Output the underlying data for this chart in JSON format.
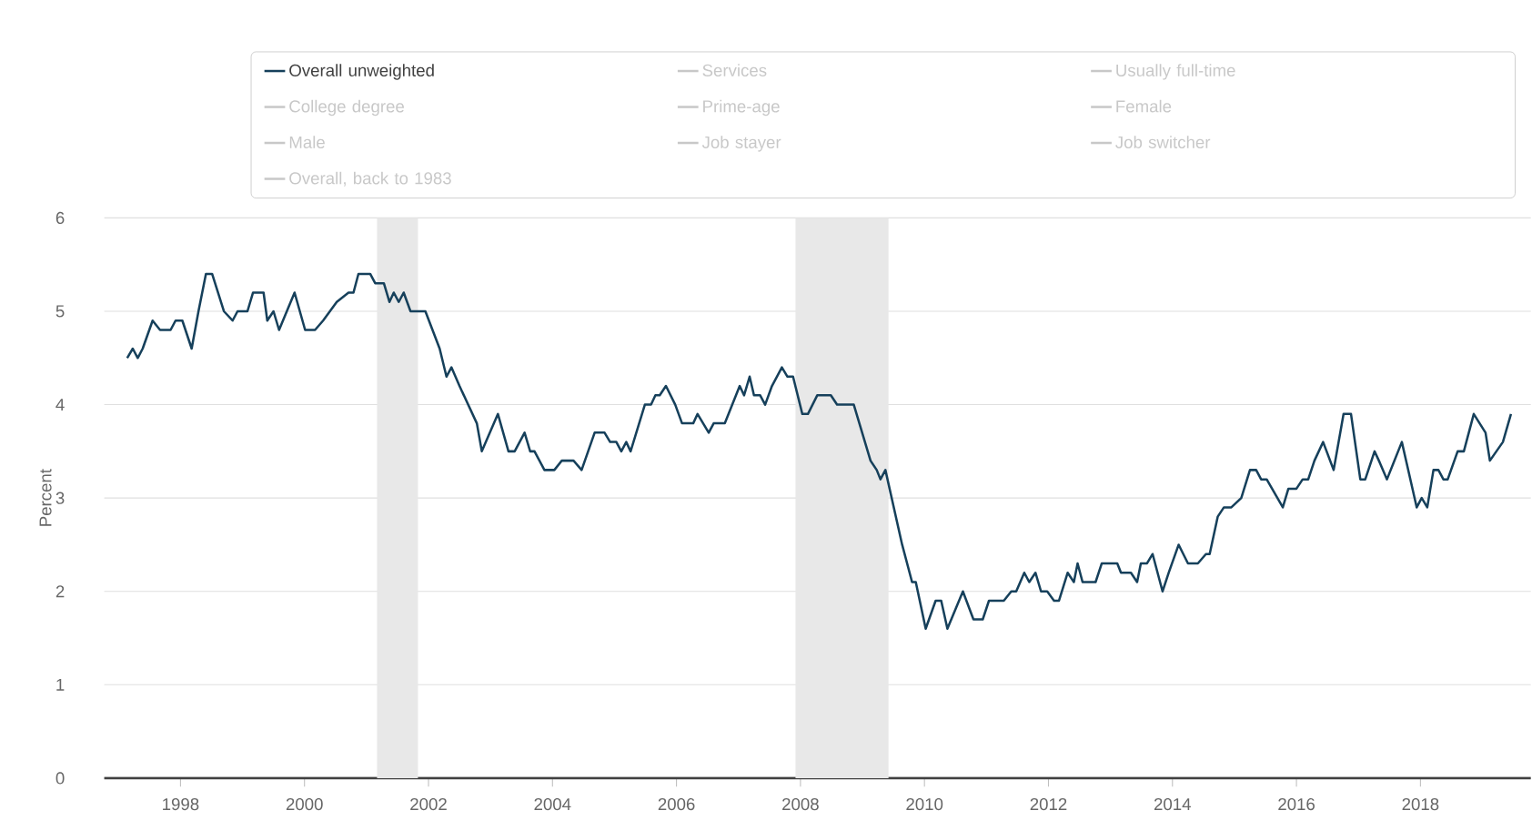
{
  "chart_data": {
    "type": "line",
    "ylabel": "Percent",
    "x": [
      1997.14,
      1997.23,
      1997.31,
      1997.39,
      1997.55,
      1997.67,
      1997.84,
      1997.92,
      1998.03,
      1998.18,
      1998.29,
      1998.41,
      1998.51,
      1998.7,
      1998.84,
      1998.92,
      1999.08,
      1999.17,
      1999.34,
      1999.4,
      1999.5,
      1999.59,
      1999.84,
      2000.01,
      2000.17,
      2000.3,
      2000.52,
      2000.71,
      2000.79,
      2000.87,
      2001.06,
      2001.14,
      2001.28,
      2001.37,
      2001.44,
      2001.52,
      2001.6,
      2001.71,
      2001.95,
      2002.18,
      2002.29,
      2002.37,
      2002.5,
      2002.78,
      2002.86,
      2003.12,
      2003.29,
      2003.39,
      2003.55,
      2003.64,
      2003.71,
      2003.87,
      2004.03,
      2004.15,
      2004.34,
      2004.47,
      2004.68,
      2004.84,
      2004.93,
      2005.03,
      2005.11,
      2005.19,
      2005.26,
      2005.49,
      2005.59,
      2005.66,
      2005.73,
      2005.83,
      2005.98,
      2006.09,
      2006.27,
      2006.34,
      2006.52,
      2006.6,
      2006.78,
      2006.9,
      2007.02,
      2007.09,
      2007.18,
      2007.25,
      2007.35,
      2007.43,
      2007.54,
      2007.7,
      2007.79,
      2007.88,
      2008.03,
      2008.12,
      2008.27,
      2008.49,
      2008.59,
      2008.86,
      2009.13,
      2009.23,
      2009.29,
      2009.37,
      2009.64,
      2009.8,
      2009.86,
      2010.02,
      2010.18,
      2010.27,
      2010.37,
      2010.62,
      2010.79,
      2010.94,
      2011.04,
      2011.28,
      2011.4,
      2011.48,
      2011.61,
      2011.69,
      2011.79,
      2011.88,
      2011.98,
      2012.09,
      2012.17,
      2012.31,
      2012.41,
      2012.47,
      2012.55,
      2012.76,
      2012.86,
      2013.11,
      2013.17,
      2013.33,
      2013.43,
      2013.49,
      2013.59,
      2013.68,
      2013.84,
      2013.94,
      2014.1,
      2014.25,
      2014.41,
      2014.54,
      2014.6,
      2014.73,
      2014.83,
      2014.95,
      2015.11,
      2015.25,
      2015.35,
      2015.43,
      2015.52,
      2015.78,
      2015.87,
      2016.0,
      2016.1,
      2016.19,
      2016.29,
      2016.43,
      2016.6,
      2016.76,
      2016.88,
      2017.03,
      2017.11,
      2017.26,
      2017.33,
      2017.46,
      2017.7,
      2017.94,
      2018.02,
      2018.11,
      2018.21,
      2018.29,
      2018.37,
      2018.44,
      2018.6,
      2018.7,
      2018.86,
      2019.05,
      2019.12,
      2019.33,
      2019.46
    ],
    "series": [
      {
        "name": "Overall unweighted",
        "color": "#16405b",
        "values": [
          4.5,
          4.6,
          4.5,
          4.6,
          4.9,
          4.8,
          4.8,
          4.9,
          4.9,
          4.6,
          5.0,
          5.4,
          5.4,
          5.0,
          4.9,
          5.0,
          5.0,
          5.2,
          5.2,
          4.9,
          5.0,
          4.8,
          5.2,
          4.8,
          4.8,
          4.9,
          5.1,
          5.2,
          5.2,
          5.4,
          5.4,
          5.3,
          5.3,
          5.1,
          5.2,
          5.1,
          5.2,
          5.0,
          5.0,
          4.6,
          4.3,
          4.4,
          4.2,
          3.8,
          3.5,
          3.9,
          3.5,
          3.5,
          3.7,
          3.5,
          3.5,
          3.3,
          3.3,
          3.4,
          3.4,
          3.3,
          3.7,
          3.7,
          3.6,
          3.6,
          3.5,
          3.6,
          3.5,
          4.0,
          4.0,
          4.1,
          4.1,
          4.2,
          4.0,
          3.8,
          3.8,
          3.9,
          3.7,
          3.8,
          3.8,
          4.0,
          4.2,
          4.1,
          4.3,
          4.1,
          4.1,
          4.0,
          4.2,
          4.4,
          4.3,
          4.3,
          3.9,
          3.9,
          4.1,
          4.1,
          4.0,
          4.0,
          3.4,
          3.3,
          3.2,
          3.3,
          2.5,
          2.1,
          2.1,
          1.6,
          1.9,
          1.9,
          1.6,
          2.0,
          1.7,
          1.7,
          1.9,
          1.9,
          2.0,
          2.0,
          2.2,
          2.1,
          2.2,
          2.0,
          2.0,
          1.9,
          1.9,
          2.2,
          2.1,
          2.3,
          2.1,
          2.1,
          2.3,
          2.3,
          2.2,
          2.2,
          2.1,
          2.3,
          2.3,
          2.4,
          2.0,
          2.2,
          2.5,
          2.3,
          2.3,
          2.4,
          2.4,
          2.8,
          2.9,
          2.9,
          3.0,
          3.3,
          3.3,
          3.2,
          3.2,
          2.9,
          3.1,
          3.1,
          3.2,
          3.2,
          3.4,
          3.6,
          3.3,
          3.9,
          3.9,
          3.2,
          3.2,
          3.5,
          3.4,
          3.2,
          3.6,
          2.9,
          3.0,
          2.9,
          3.3,
          3.3,
          3.2,
          3.2,
          3.5,
          3.5,
          3.9,
          3.7,
          3.4,
          3.6,
          3.9
        ]
      },
      {
        "name": "Services",
        "color": "#c8c8c8",
        "values": [
          null,
          null,
          null,
          null,
          null,
          null,
          null,
          null,
          null,
          null,
          null,
          null,
          null,
          null,
          null,
          null,
          null,
          null,
          null,
          null,
          null,
          null,
          null,
          null,
          null,
          null,
          null,
          null,
          null,
          null,
          null,
          null,
          null,
          null,
          null,
          null,
          null,
          null,
          null,
          null,
          null,
          null,
          null,
          null,
          null,
          null,
          null,
          null,
          null,
          null,
          null,
          null,
          null,
          null,
          null,
          null,
          null,
          null,
          null,
          null,
          null,
          null,
          null,
          null,
          null,
          null,
          null,
          null,
          null,
          null,
          null,
          null,
          null,
          null,
          null,
          null,
          null,
          null,
          null,
          null,
          null,
          null,
          null,
          null,
          null,
          null,
          null,
          null,
          null,
          null,
          null,
          null,
          null,
          null,
          null,
          null,
          null,
          null,
          null,
          null,
          null,
          null,
          null,
          null,
          null,
          null,
          null,
          null,
          null,
          null,
          null,
          null,
          null,
          null,
          null,
          null,
          null,
          null,
          null,
          null,
          null,
          null,
          null,
          null,
          null,
          null,
          null,
          null,
          null,
          null,
          null,
          null,
          null,
          null,
          null,
          null,
          null,
          null,
          null,
          null,
          null,
          null,
          null,
          null,
          null,
          null,
          null,
          null,
          null,
          null,
          null,
          null,
          null,
          null,
          null,
          null,
          null,
          null,
          null,
          null,
          null,
          null,
          null,
          null,
          null,
          null,
          null,
          null,
          null,
          null,
          null,
          null,
          null,
          null,
          null
        ]
      },
      {
        "name": "Usually full-time",
        "color": "#c8c8c8",
        "values": [
          null,
          null,
          null,
          null,
          null,
          null,
          null,
          null,
          null,
          null,
          null,
          null,
          null,
          null,
          null,
          null,
          null,
          null,
          null,
          null,
          null,
          null,
          null,
          null,
          null,
          null,
          null,
          null,
          null,
          null,
          null,
          null,
          null,
          null,
          null,
          null,
          null,
          null,
          null,
          null,
          null,
          null,
          null,
          null,
          null,
          null,
          null,
          null,
          null,
          null,
          null,
          null,
          null,
          null,
          null,
          null,
          null,
          null,
          null,
          null,
          null,
          null,
          null,
          null,
          null,
          null,
          null,
          null,
          null,
          null,
          null,
          null,
          null,
          null,
          null,
          null,
          null,
          null,
          null,
          null,
          null,
          null,
          null,
          null,
          null,
          null,
          null,
          null,
          null,
          null,
          null,
          null,
          null,
          null,
          null,
          null,
          null,
          null,
          null,
          null,
          null,
          null,
          null,
          null,
          null,
          null,
          null,
          null,
          null,
          null,
          null,
          null,
          null,
          null,
          null,
          null,
          null,
          null,
          null,
          null,
          null,
          null,
          null,
          null,
          null,
          null,
          null,
          null,
          null,
          null,
          null,
          null,
          null,
          null,
          null,
          null,
          null,
          null,
          null,
          null,
          null,
          null,
          null,
          null,
          null,
          null,
          null,
          null,
          null,
          null,
          null,
          null,
          null,
          null,
          null,
          null,
          null,
          null,
          null,
          null,
          null,
          null,
          null,
          null,
          null,
          null,
          null,
          null,
          null,
          null,
          null,
          null,
          null,
          null,
          null
        ]
      },
      {
        "name": "College degree",
        "color": "#c8c8c8",
        "values": [
          null,
          null,
          null,
          null,
          null,
          null,
          null,
          null,
          null,
          null,
          null,
          null,
          null,
          null,
          null,
          null,
          null,
          null,
          null,
          null,
          null,
          null,
          null,
          null,
          null,
          null,
          null,
          null,
          null,
          null,
          null,
          null,
          null,
          null,
          null,
          null,
          null,
          null,
          null,
          null,
          null,
          null,
          null,
          null,
          null,
          null,
          null,
          null,
          null,
          null,
          null,
          null,
          null,
          null,
          null,
          null,
          null,
          null,
          null,
          null,
          null,
          null,
          null,
          null,
          null,
          null,
          null,
          null,
          null,
          null,
          null,
          null,
          null,
          null,
          null,
          null,
          null,
          null,
          null,
          null,
          null,
          null,
          null,
          null,
          null,
          null,
          null,
          null,
          null,
          null,
          null,
          null,
          null,
          null,
          null,
          null,
          null,
          null,
          null,
          null,
          null,
          null,
          null,
          null,
          null,
          null,
          null,
          null,
          null,
          null,
          null,
          null,
          null,
          null,
          null,
          null,
          null,
          null,
          null,
          null,
          null,
          null,
          null,
          null,
          null,
          null,
          null,
          null,
          null,
          null,
          null,
          null,
          null,
          null,
          null,
          null,
          null,
          null,
          null,
          null,
          null,
          null,
          null,
          null,
          null,
          null,
          null,
          null,
          null,
          null,
          null,
          null,
          null,
          null,
          null,
          null,
          null,
          null,
          null,
          null,
          null,
          null,
          null,
          null,
          null,
          null,
          null,
          null,
          null,
          null,
          null,
          null,
          null,
          null,
          null
        ]
      },
      {
        "name": "Prime-age",
        "color": "#c8c8c8",
        "values": [
          null,
          null,
          null,
          null,
          null,
          null,
          null,
          null,
          null,
          null,
          null,
          null,
          null,
          null,
          null,
          null,
          null,
          null,
          null,
          null,
          null,
          null,
          null,
          null,
          null,
          null,
          null,
          null,
          null,
          null,
          null,
          null,
          null,
          null,
          null,
          null,
          null,
          null,
          null,
          null,
          null,
          null,
          null,
          null,
          null,
          null,
          null,
          null,
          null,
          null,
          null,
          null,
          null,
          null,
          null,
          null,
          null,
          null,
          null,
          null,
          null,
          null,
          null,
          null,
          null,
          null,
          null,
          null,
          null,
          null,
          null,
          null,
          null,
          null,
          null,
          null,
          null,
          null,
          null,
          null,
          null,
          null,
          null,
          null,
          null,
          null,
          null,
          null,
          null,
          null,
          null,
          null,
          null,
          null,
          null,
          null,
          null,
          null,
          null,
          null,
          null,
          null,
          null,
          null,
          null,
          null,
          null,
          null,
          null,
          null,
          null,
          null,
          null,
          null,
          null,
          null,
          null,
          null,
          null,
          null,
          null,
          null,
          null,
          null,
          null,
          null,
          null,
          null,
          null,
          null,
          null,
          null,
          null,
          null,
          null,
          null,
          null,
          null,
          null,
          null,
          null,
          null,
          null,
          null,
          null,
          null,
          null,
          null,
          null,
          null,
          null,
          null,
          null,
          null,
          null,
          null,
          null,
          null,
          null,
          null,
          null,
          null,
          null,
          null,
          null,
          null,
          null,
          null,
          null,
          null,
          null,
          null,
          null,
          null,
          null
        ]
      },
      {
        "name": "Female",
        "color": "#c8c8c8",
        "values": [
          null,
          null,
          null,
          null,
          null,
          null,
          null,
          null,
          null,
          null,
          null,
          null,
          null,
          null,
          null,
          null,
          null,
          null,
          null,
          null,
          null,
          null,
          null,
          null,
          null,
          null,
          null,
          null,
          null,
          null,
          null,
          null,
          null,
          null,
          null,
          null,
          null,
          null,
          null,
          null,
          null,
          null,
          null,
          null,
          null,
          null,
          null,
          null,
          null,
          null,
          null,
          null,
          null,
          null,
          null,
          null,
          null,
          null,
          null,
          null,
          null,
          null,
          null,
          null,
          null,
          null,
          null,
          null,
          null,
          null,
          null,
          null,
          null,
          null,
          null,
          null,
          null,
          null,
          null,
          null,
          null,
          null,
          null,
          null,
          null,
          null,
          null,
          null,
          null,
          null,
          null,
          null,
          null,
          null,
          null,
          null,
          null,
          null,
          null,
          null,
          null,
          null,
          null,
          null,
          null,
          null,
          null,
          null,
          null,
          null,
          null,
          null,
          null,
          null,
          null,
          null,
          null,
          null,
          null,
          null,
          null,
          null,
          null,
          null,
          null,
          null,
          null,
          null,
          null,
          null,
          null,
          null,
          null,
          null,
          null,
          null,
          null,
          null,
          null,
          null,
          null,
          null,
          null,
          null,
          null,
          null,
          null,
          null,
          null,
          null,
          null,
          null,
          null,
          null,
          null,
          null,
          null,
          null,
          null,
          null,
          null,
          null,
          null,
          null,
          null,
          null,
          null,
          null,
          null,
          null,
          null,
          null,
          null,
          null,
          null
        ]
      },
      {
        "name": "Male",
        "color": "#c8c8c8",
        "values": [
          null,
          null,
          null,
          null,
          null,
          null,
          null,
          null,
          null,
          null,
          null,
          null,
          null,
          null,
          null,
          null,
          null,
          null,
          null,
          null,
          null,
          null,
          null,
          null,
          null,
          null,
          null,
          null,
          null,
          null,
          null,
          null,
          null,
          null,
          null,
          null,
          null,
          null,
          null,
          null,
          null,
          null,
          null,
          null,
          null,
          null,
          null,
          null,
          null,
          null,
          null,
          null,
          null,
          null,
          null,
          null,
          null,
          null,
          null,
          null,
          null,
          null,
          null,
          null,
          null,
          null,
          null,
          null,
          null,
          null,
          null,
          null,
          null,
          null,
          null,
          null,
          null,
          null,
          null,
          null,
          null,
          null,
          null,
          null,
          null,
          null,
          null,
          null,
          null,
          null,
          null,
          null,
          null,
          null,
          null,
          null,
          null,
          null,
          null,
          null,
          null,
          null,
          null,
          null,
          null,
          null,
          null,
          null,
          null,
          null,
          null,
          null,
          null,
          null,
          null,
          null,
          null,
          null,
          null,
          null,
          null,
          null,
          null,
          null,
          null,
          null,
          null,
          null,
          null,
          null,
          null,
          null,
          null,
          null,
          null,
          null,
          null,
          null,
          null,
          null,
          null,
          null,
          null,
          null,
          null,
          null,
          null,
          null,
          null,
          null,
          null,
          null,
          null,
          null,
          null,
          null,
          null,
          null,
          null,
          null,
          null,
          null,
          null,
          null,
          null,
          null,
          null,
          null,
          null,
          null,
          null,
          null,
          null,
          null,
          null
        ]
      },
      {
        "name": "Job stayer",
        "color": "#c8c8c8",
        "values": [
          null,
          null,
          null,
          null,
          null,
          null,
          null,
          null,
          null,
          null,
          null,
          null,
          null,
          null,
          null,
          null,
          null,
          null,
          null,
          null,
          null,
          null,
          null,
          null,
          null,
          null,
          null,
          null,
          null,
          null,
          null,
          null,
          null,
          null,
          null,
          null,
          null,
          null,
          null,
          null,
          null,
          null,
          null,
          null,
          null,
          null,
          null,
          null,
          null,
          null,
          null,
          null,
          null,
          null,
          null,
          null,
          null,
          null,
          null,
          null,
          null,
          null,
          null,
          null,
          null,
          null,
          null,
          null,
          null,
          null,
          null,
          null,
          null,
          null,
          null,
          null,
          null,
          null,
          null,
          null,
          null,
          null,
          null,
          null,
          null,
          null,
          null,
          null,
          null,
          null,
          null,
          null,
          null,
          null,
          null,
          null,
          null,
          null,
          null,
          null,
          null,
          null,
          null,
          null,
          null,
          null,
          null,
          null,
          null,
          null,
          null,
          null,
          null,
          null,
          null,
          null,
          null,
          null,
          null,
          null,
          null,
          null,
          null,
          null,
          null,
          null,
          null,
          null,
          null,
          null,
          null,
          null,
          null,
          null,
          null,
          null,
          null,
          null,
          null,
          null,
          null,
          null,
          null,
          null,
          null,
          null,
          null,
          null,
          null,
          null,
          null,
          null,
          null,
          null,
          null,
          null,
          null,
          null,
          null,
          null,
          null,
          null,
          null,
          null,
          null,
          null,
          null,
          null,
          null,
          null,
          null,
          null,
          null,
          null,
          null
        ]
      },
      {
        "name": "Job switcher",
        "color": "#c8c8c8",
        "values": [
          null,
          null,
          null,
          null,
          null,
          null,
          null,
          null,
          null,
          null,
          null,
          null,
          null,
          null,
          null,
          null,
          null,
          null,
          null,
          null,
          null,
          null,
          null,
          null,
          null,
          null,
          null,
          null,
          null,
          null,
          null,
          null,
          null,
          null,
          null,
          null,
          null,
          null,
          null,
          null,
          null,
          null,
          null,
          null,
          null,
          null,
          null,
          null,
          null,
          null,
          null,
          null,
          null,
          null,
          null,
          null,
          null,
          null,
          null,
          null,
          null,
          null,
          null,
          null,
          null,
          null,
          null,
          null,
          null,
          null,
          null,
          null,
          null,
          null,
          null,
          null,
          null,
          null,
          null,
          null,
          null,
          null,
          null,
          null,
          null,
          null,
          null,
          null,
          null,
          null,
          null,
          null,
          null,
          null,
          null,
          null,
          null,
          null,
          null,
          null,
          null,
          null,
          null,
          null,
          null,
          null,
          null,
          null,
          null,
          null,
          null,
          null,
          null,
          null,
          null,
          null,
          null,
          null,
          null,
          null,
          null,
          null,
          null,
          null,
          null,
          null,
          null,
          null,
          null,
          null,
          null,
          null,
          null,
          null,
          null,
          null,
          null,
          null,
          null,
          null,
          null,
          null,
          null,
          null,
          null,
          null,
          null,
          null,
          null,
          null,
          null,
          null,
          null,
          null,
          null,
          null,
          null,
          null,
          null,
          null,
          null,
          null,
          null,
          null,
          null,
          null,
          null,
          null,
          null,
          null,
          null,
          null,
          null,
          null,
          null
        ]
      },
      {
        "name": "Overall, back to 1983",
        "color": "#c8c8c8",
        "values": [
          null,
          null,
          null,
          null,
          null,
          null,
          null,
          null,
          null,
          null,
          null,
          null,
          null,
          null,
          null,
          null,
          null,
          null,
          null,
          null,
          null,
          null,
          null,
          null,
          null,
          null,
          null,
          null,
          null,
          null,
          null,
          null,
          null,
          null,
          null,
          null,
          null,
          null,
          null,
          null,
          null,
          null,
          null,
          null,
          null,
          null,
          null,
          null,
          null,
          null,
          null,
          null,
          null,
          null,
          null,
          null,
          null,
          null,
          null,
          null,
          null,
          null,
          null,
          null,
          null,
          null,
          null,
          null,
          null,
          null,
          null,
          null,
          null,
          null,
          null,
          null,
          null,
          null,
          null,
          null,
          null,
          null,
          null,
          null,
          null,
          null,
          null,
          null,
          null,
          null,
          null,
          null,
          null,
          null,
          null,
          null,
          null,
          null,
          null,
          null,
          null,
          null,
          null,
          null,
          null,
          null,
          null,
          null,
          null,
          null,
          null,
          null,
          null,
          null,
          null,
          null,
          null,
          null,
          null,
          null,
          null,
          null,
          null,
          null,
          null,
          null,
          null,
          null,
          null,
          null,
          null,
          null,
          null,
          null,
          null,
          null,
          null,
          null,
          null,
          null,
          null,
          null,
          null,
          null,
          null,
          null,
          null,
          null,
          null,
          null,
          null,
          null,
          null,
          null,
          null,
          null,
          null,
          null,
          null,
          null,
          null,
          null,
          null,
          null,
          null,
          null,
          null,
          null,
          null,
          null,
          null,
          null,
          null,
          null,
          null
        ]
      }
    ],
    "bands": [
      {
        "axis": "x",
        "from": 2001.17,
        "to": 2001.83,
        "color": "#e8e8e8"
      },
      {
        "axis": "x",
        "from": 2007.92,
        "to": 2009.42,
        "color": "#e8e8e8"
      }
    ],
    "xlim": [
      1996.77,
      2019.78
    ],
    "ylim": [
      0,
      6
    ],
    "xticks": [
      1998,
      2000,
      2002,
      2004,
      2006,
      2008,
      2010,
      2012,
      2014,
      2016,
      2018
    ],
    "yticks": [
      0,
      1,
      2,
      3,
      4,
      5,
      6
    ],
    "grid": "y",
    "legend": "top",
    "marker": "none",
    "line_style": "solid"
  }
}
